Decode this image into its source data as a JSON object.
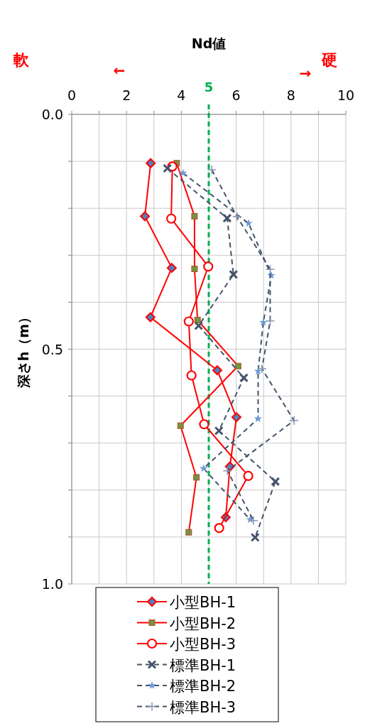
{
  "chart_data": {
    "type": "line",
    "title": "Nd値",
    "ylabel": "深さh（m）",
    "annotations": [
      "軟",
      "←",
      "→",
      "硬"
    ],
    "xlim": [
      0,
      10
    ],
    "xticks": [
      0,
      {
        "value": 1,
        "label": null
      },
      2,
      {
        "value": 3,
        "label": null
      },
      4,
      {
        "value": 5,
        "label": null
      },
      6,
      {
        "value": 7,
        "label": null
      },
      8,
      {
        "value": 9,
        "label": null
      },
      10
    ],
    "ylim": [
      1.0,
      0.0
    ],
    "yticks": [
      {
        "value": 0,
        "label": "0.0"
      },
      {
        "value": 0.1,
        "label": null
      },
      {
        "value": 0.2,
        "label": null
      },
      {
        "value": 0.3,
        "label": null
      },
      {
        "value": 0.4,
        "label": null
      },
      {
        "value": 0.5,
        "label": "0.5"
      },
      {
        "value": 0.6,
        "label": null
      },
      {
        "value": 0.7,
        "label": null
      },
      {
        "value": 0.8,
        "label": null
      },
      {
        "value": 0.9,
        "label": null
      },
      {
        "value": 1.0,
        "label": "1.0"
      }
    ],
    "grid": true,
    "legend": "bottom",
    "ref_lines": [
      {
        "axis": "x",
        "value": 5,
        "label": "5",
        "color": "#00b050",
        "line_style": "dashed"
      }
    ],
    "series": [
      {
        "name": "小型BH-1",
        "color": "#ff0000",
        "marker": "diamond",
        "line_style": "solid",
        "x": [
          2.88,
          2.67,
          3.65,
          2.87,
          5.31,
          6.01,
          5.77,
          5.62
        ],
        "values": [
          0.104,
          0.217,
          0.327,
          0.432,
          0.545,
          0.645,
          0.75,
          0.858
        ]
      },
      {
        "name": "小型BH-2",
        "color": "#ff0000",
        "marker": "square",
        "line_style": "solid",
        "x": [
          3.83,
          4.48,
          4.48,
          4.59,
          6.07,
          3.97,
          4.55,
          4.27
        ],
        "values": [
          0.104,
          0.217,
          0.329,
          0.438,
          0.536,
          0.663,
          0.773,
          0.89
        ]
      },
      {
        "name": "小型BH-3",
        "color": "#ff0000",
        "marker": "circle",
        "line_style": "solid",
        "x": [
          3.67,
          3.63,
          4.98,
          4.27,
          4.37,
          4.83,
          6.44,
          5.38
        ],
        "values": [
          0.111,
          0.222,
          0.324,
          0.441,
          0.556,
          0.66,
          0.77,
          0.881
        ]
      },
      {
        "name": "標準BH-1",
        "color": "#44546a",
        "marker": "cross",
        "line_style": "dashed",
        "x": [
          3.49,
          5.67,
          5.9,
          4.63,
          6.28,
          5.37,
          7.43,
          6.69
        ],
        "values": [
          0.115,
          0.221,
          0.341,
          0.45,
          0.561,
          0.674,
          0.782,
          0.901
        ]
      },
      {
        "name": "標準BH-2",
        "color": "#44546a",
        "marker": "star",
        "line_style": "dashed",
        "x": [
          4.06,
          6.45,
          7.28,
          6.99,
          6.8,
          6.8,
          4.81,
          6.51
        ],
        "values": [
          0.125,
          0.232,
          0.343,
          0.443,
          0.547,
          0.648,
          0.754,
          0.863
        ]
      },
      {
        "name": "標準BH-3",
        "color": "#44546a",
        "marker": "plus",
        "line_style": "dashed",
        "x": [
          5.11,
          6.03,
          7.24,
          7.24,
          6.94,
          8.11,
          5.68,
          6.63
        ],
        "values": [
          0.118,
          0.218,
          0.33,
          0.44,
          0.542,
          0.652,
          0.759,
          0.865
        ]
      }
    ]
  }
}
